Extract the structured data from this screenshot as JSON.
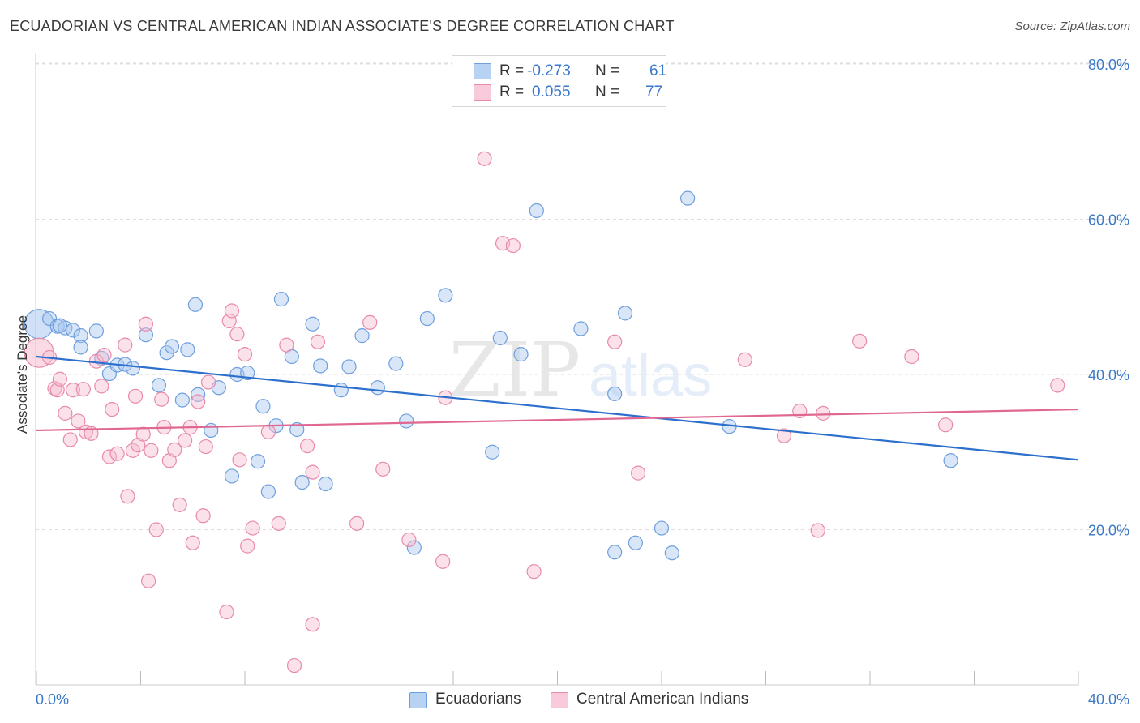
{
  "header": {
    "title": "ECUADORIAN VS CENTRAL AMERICAN INDIAN ASSOCIATE'S DEGREE CORRELATION CHART",
    "source": "Source: ZipAtlas.com"
  },
  "stats_legend": {
    "rows": [
      {
        "r_label": "R =",
        "r_value": "-0.273",
        "n_label": "N =",
        "n_value": "61"
      },
      {
        "r_label": "R =",
        "r_value": "0.055",
        "n_label": "N =",
        "n_value": "77"
      }
    ]
  },
  "watermark": {
    "zip": "ZIP",
    "atlas": "atlas"
  },
  "colors": {
    "blue_fill": "#a9c8f0",
    "blue_stroke": "#6f9fdd",
    "blue_line": "#2c6fcc",
    "pink_fill": "#f6bcd0",
    "pink_stroke": "#e88aa9",
    "pink_line": "#e06791",
    "tick_label": "#3a78c9"
  },
  "chart_data": {
    "type": "scatter",
    "title": "ECUADORIAN VS CENTRAL AMERICAN INDIAN ASSOCIATE'S DEGREE CORRELATION CHART",
    "xlabel": "",
    "ylabel": "Associate's Degree",
    "xlim": [
      0,
      40
    ],
    "ylim": [
      0,
      80
    ],
    "x_tick_labels": [
      "0.0%",
      "40.0%"
    ],
    "y_tick_values": [
      20,
      40,
      60,
      80
    ],
    "y_tick_labels": [
      "20.0%",
      "40.0%",
      "60.0%",
      "80.0%"
    ],
    "grid": true,
    "legend_position": "bottom-center",
    "series": [
      {
        "name": "Ecuadorians",
        "color": "#6f9fdd",
        "trend": {
          "x": [
            0,
            40
          ],
          "y": [
            42.3,
            29.0
          ]
        },
        "points": [
          {
            "x": 0.1,
            "y": 46.5,
            "big": true
          },
          {
            "x": 0.5,
            "y": 47.2
          },
          {
            "x": 0.8,
            "y": 46.2
          },
          {
            "x": 1.1,
            "y": 46.0
          },
          {
            "x": 1.4,
            "y": 45.7
          },
          {
            "x": 1.7,
            "y": 45.0
          },
          {
            "x": 2.3,
            "y": 45.6
          },
          {
            "x": 1.7,
            "y": 43.5
          },
          {
            "x": 2.5,
            "y": 42.1
          },
          {
            "x": 2.8,
            "y": 40.1
          },
          {
            "x": 3.1,
            "y": 41.2
          },
          {
            "x": 3.4,
            "y": 41.3
          },
          {
            "x": 3.7,
            "y": 40.8
          },
          {
            "x": 4.2,
            "y": 45.1
          },
          {
            "x": 4.7,
            "y": 38.6
          },
          {
            "x": 5.0,
            "y": 42.8
          },
          {
            "x": 5.2,
            "y": 43.6
          },
          {
            "x": 5.6,
            "y": 36.7
          },
          {
            "x": 5.8,
            "y": 43.2
          },
          {
            "x": 6.1,
            "y": 49.0
          },
          {
            "x": 6.2,
            "y": 37.4
          },
          {
            "x": 6.7,
            "y": 32.8
          },
          {
            "x": 7.0,
            "y": 38.3
          },
          {
            "x": 7.5,
            "y": 26.9
          },
          {
            "x": 7.7,
            "y": 40.0
          },
          {
            "x": 8.1,
            "y": 40.2
          },
          {
            "x": 8.5,
            "y": 28.8
          },
          {
            "x": 8.7,
            "y": 35.9
          },
          {
            "x": 8.9,
            "y": 24.9
          },
          {
            "x": 9.2,
            "y": 33.4
          },
          {
            "x": 9.4,
            "y": 49.7
          },
          {
            "x": 9.8,
            "y": 42.3
          },
          {
            "x": 10.0,
            "y": 32.9
          },
          {
            "x": 10.2,
            "y": 26.1
          },
          {
            "x": 10.6,
            "y": 46.5
          },
          {
            "x": 10.9,
            "y": 41.1
          },
          {
            "x": 11.1,
            "y": 25.9
          },
          {
            "x": 11.7,
            "y": 38.0
          },
          {
            "x": 12.0,
            "y": 41.0
          },
          {
            "x": 12.5,
            "y": 45.0
          },
          {
            "x": 13.1,
            "y": 38.3
          },
          {
            "x": 13.8,
            "y": 41.4
          },
          {
            "x": 14.2,
            "y": 34.0
          },
          {
            "x": 14.5,
            "y": 17.7
          },
          {
            "x": 15.0,
            "y": 47.2
          },
          {
            "x": 15.7,
            "y": 50.2
          },
          {
            "x": 17.8,
            "y": 44.7
          },
          {
            "x": 17.5,
            "y": 30.0
          },
          {
            "x": 18.6,
            "y": 42.6
          },
          {
            "x": 19.2,
            "y": 61.1
          },
          {
            "x": 20.9,
            "y": 45.9
          },
          {
            "x": 22.2,
            "y": 37.5
          },
          {
            "x": 22.6,
            "y": 47.9
          },
          {
            "x": 22.2,
            "y": 17.1
          },
          {
            "x": 23.0,
            "y": 18.3
          },
          {
            "x": 24.0,
            "y": 20.2
          },
          {
            "x": 24.4,
            "y": 17.0
          },
          {
            "x": 25.0,
            "y": 62.7
          },
          {
            "x": 26.6,
            "y": 33.3
          },
          {
            "x": 35.1,
            "y": 28.9
          },
          {
            "x": 0.9,
            "y": 46.3
          }
        ]
      },
      {
        "name": "Central American Indians",
        "color": "#e88aa9",
        "trend": {
          "x": [
            0,
            40
          ],
          "y": [
            32.8,
            35.5
          ]
        },
        "points": [
          {
            "x": 0.1,
            "y": 42.8,
            "big": true
          },
          {
            "x": 0.5,
            "y": 42.2
          },
          {
            "x": 0.7,
            "y": 38.2
          },
          {
            "x": 0.8,
            "y": 38.0
          },
          {
            "x": 0.9,
            "y": 39.4
          },
          {
            "x": 1.1,
            "y": 35.0
          },
          {
            "x": 1.3,
            "y": 31.6
          },
          {
            "x": 1.4,
            "y": 38.0
          },
          {
            "x": 1.6,
            "y": 34.0
          },
          {
            "x": 1.8,
            "y": 38.1
          },
          {
            "x": 1.9,
            "y": 32.6
          },
          {
            "x": 2.1,
            "y": 32.4
          },
          {
            "x": 2.3,
            "y": 41.7
          },
          {
            "x": 2.5,
            "y": 38.5
          },
          {
            "x": 2.6,
            "y": 42.5
          },
          {
            "x": 2.8,
            "y": 29.4
          },
          {
            "x": 2.9,
            "y": 35.5
          },
          {
            "x": 3.1,
            "y": 29.8
          },
          {
            "x": 3.4,
            "y": 43.8
          },
          {
            "x": 3.5,
            "y": 24.3
          },
          {
            "x": 3.7,
            "y": 30.2
          },
          {
            "x": 3.8,
            "y": 37.2
          },
          {
            "x": 3.9,
            "y": 30.9
          },
          {
            "x": 4.1,
            "y": 32.3
          },
          {
            "x": 4.2,
            "y": 46.5
          },
          {
            "x": 4.3,
            "y": 13.4
          },
          {
            "x": 4.4,
            "y": 30.2
          },
          {
            "x": 4.6,
            "y": 20.0
          },
          {
            "x": 4.8,
            "y": 36.8
          },
          {
            "x": 4.9,
            "y": 33.2
          },
          {
            "x": 5.1,
            "y": 28.9
          },
          {
            "x": 5.3,
            "y": 30.3
          },
          {
            "x": 5.5,
            "y": 23.2
          },
          {
            "x": 5.7,
            "y": 31.5
          },
          {
            "x": 5.9,
            "y": 33.2
          },
          {
            "x": 6.0,
            "y": 18.3
          },
          {
            "x": 6.2,
            "y": 36.5
          },
          {
            "x": 6.4,
            "y": 21.8
          },
          {
            "x": 6.5,
            "y": 30.7
          },
          {
            "x": 6.6,
            "y": 39.0
          },
          {
            "x": 7.3,
            "y": 9.4
          },
          {
            "x": 7.4,
            "y": 46.9
          },
          {
            "x": 7.5,
            "y": 48.2
          },
          {
            "x": 7.7,
            "y": 45.2
          },
          {
            "x": 7.8,
            "y": 29.0
          },
          {
            "x": 8.0,
            "y": 42.6
          },
          {
            "x": 8.1,
            "y": 17.9
          },
          {
            "x": 8.3,
            "y": 20.2
          },
          {
            "x": 8.9,
            "y": 32.6
          },
          {
            "x": 9.3,
            "y": 20.8
          },
          {
            "x": 9.6,
            "y": 43.8
          },
          {
            "x": 9.9,
            "y": 2.5
          },
          {
            "x": 10.4,
            "y": 30.8
          },
          {
            "x": 10.6,
            "y": 7.8
          },
          {
            "x": 10.6,
            "y": 27.4
          },
          {
            "x": 10.8,
            "y": 44.2
          },
          {
            "x": 12.3,
            "y": 20.8
          },
          {
            "x": 12.8,
            "y": 46.7
          },
          {
            "x": 13.3,
            "y": 27.8
          },
          {
            "x": 14.3,
            "y": 18.7
          },
          {
            "x": 15.6,
            "y": 15.9
          },
          {
            "x": 15.7,
            "y": 37.0
          },
          {
            "x": 17.2,
            "y": 67.8
          },
          {
            "x": 17.9,
            "y": 56.9
          },
          {
            "x": 18.3,
            "y": 56.6
          },
          {
            "x": 19.1,
            "y": 14.6
          },
          {
            "x": 22.2,
            "y": 44.2
          },
          {
            "x": 23.1,
            "y": 27.3
          },
          {
            "x": 27.2,
            "y": 41.9
          },
          {
            "x": 28.7,
            "y": 32.1
          },
          {
            "x": 29.3,
            "y": 35.3
          },
          {
            "x": 30.2,
            "y": 35.0
          },
          {
            "x": 30.0,
            "y": 19.9
          },
          {
            "x": 31.6,
            "y": 44.3
          },
          {
            "x": 33.6,
            "y": 42.3
          },
          {
            "x": 34.9,
            "y": 33.5
          },
          {
            "x": 39.2,
            "y": 38.6
          }
        ]
      }
    ]
  }
}
